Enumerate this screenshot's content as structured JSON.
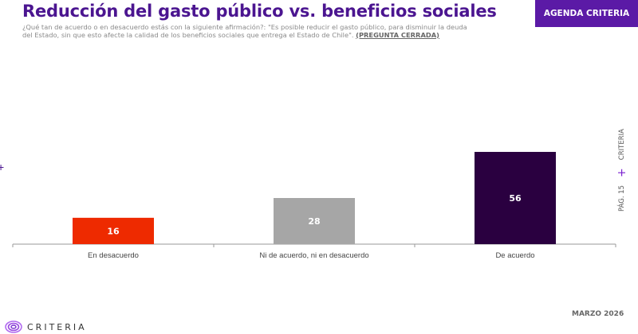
{
  "header": {
    "title": "Reducción del gasto público vs. beneficios sociales",
    "question": "¿Qué tan de acuerdo o en desacuerdo estás con la siguiente afirmación?: \"Es posible reducir el gasto público, para disminuir la deuda del Estado, sin que esto afecte la calidad de los beneficios sociales que entrega el Estado de Chile\".",
    "question_tag": "(PREGUNTA CERRADA)",
    "badge": "AGENDA CRITERIA"
  },
  "side": {
    "page": "PÁG. 15",
    "brand": "CRITERIA",
    "plus": "+"
  },
  "footer": {
    "logo_text": "CRITERIA",
    "date": "MARZO 2026"
  },
  "colors": {
    "title": "#4b1590",
    "badge": "#5b1aa6",
    "axis": "#9a9a9a"
  },
  "chart_data": {
    "type": "bar",
    "title": "Reducción del gasto público vs. beneficios sociales",
    "xlabel": "",
    "ylabel": "",
    "categories": [
      "En desacuerdo",
      "Ni de acuerdo, ni en desacuerdo",
      "De acuerdo"
    ],
    "values": [
      16,
      28,
      56
    ],
    "colors": [
      "#ee2a00",
      "#a6a6a6",
      "#2a0040"
    ],
    "data_labels": [
      "16",
      "28",
      "56"
    ],
    "ylim": [
      0,
      60
    ],
    "grid": false,
    "legend": "none"
  }
}
